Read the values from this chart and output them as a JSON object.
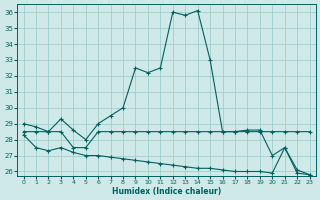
{
  "xlabel": "Humidex (Indice chaleur)",
  "xlim": [
    -0.5,
    23.5
  ],
  "ylim": [
    25.7,
    36.5
  ],
  "yticks": [
    26,
    27,
    28,
    29,
    30,
    31,
    32,
    33,
    34,
    35,
    36
  ],
  "xticks": [
    0,
    1,
    2,
    3,
    4,
    5,
    6,
    7,
    8,
    9,
    10,
    11,
    12,
    13,
    14,
    15,
    16,
    17,
    18,
    19,
    20,
    21,
    22,
    23
  ],
  "background_color": "#cfe8e8",
  "grid_color": "#9ecece",
  "line_color": "#006060",
  "line1_x": [
    0,
    1,
    2,
    3,
    4,
    5,
    6,
    7,
    8,
    9,
    10,
    11,
    12,
    13,
    14,
    15,
    16,
    17,
    18,
    19,
    20,
    21,
    22,
    23
  ],
  "line1_y": [
    29.0,
    28.8,
    28.5,
    29.3,
    28.6,
    28.0,
    29.0,
    29.5,
    30.0,
    32.5,
    32.2,
    32.5,
    36.0,
    35.8,
    36.1,
    33.0,
    28.5,
    28.5,
    28.6,
    28.6,
    27.0,
    27.5,
    26.1,
    25.8
  ],
  "line2_x": [
    0,
    1,
    2,
    3,
    4,
    5,
    6,
    7,
    8,
    9,
    10,
    11,
    12,
    13,
    14,
    15,
    16,
    17,
    18,
    19,
    20,
    21,
    22,
    23
  ],
  "line2_y": [
    28.5,
    28.5,
    28.5,
    28.5,
    27.5,
    27.5,
    28.5,
    28.5,
    28.5,
    28.5,
    28.5,
    28.5,
    28.5,
    28.5,
    28.5,
    28.5,
    28.5,
    28.5,
    28.5,
    28.5,
    28.5,
    28.5,
    28.5,
    28.5
  ],
  "line3_x": [
    0,
    1,
    2,
    3,
    4,
    5,
    6,
    7,
    8,
    9,
    10,
    11,
    12,
    13,
    14,
    15,
    16,
    17,
    18,
    19,
    20,
    21,
    22,
    23
  ],
  "line3_y": [
    28.3,
    27.5,
    27.3,
    27.5,
    27.2,
    27.0,
    27.0,
    26.9,
    26.8,
    26.7,
    26.6,
    26.5,
    26.4,
    26.3,
    26.2,
    26.2,
    26.1,
    26.0,
    26.0,
    26.0,
    25.9,
    27.5,
    25.9,
    25.8
  ]
}
